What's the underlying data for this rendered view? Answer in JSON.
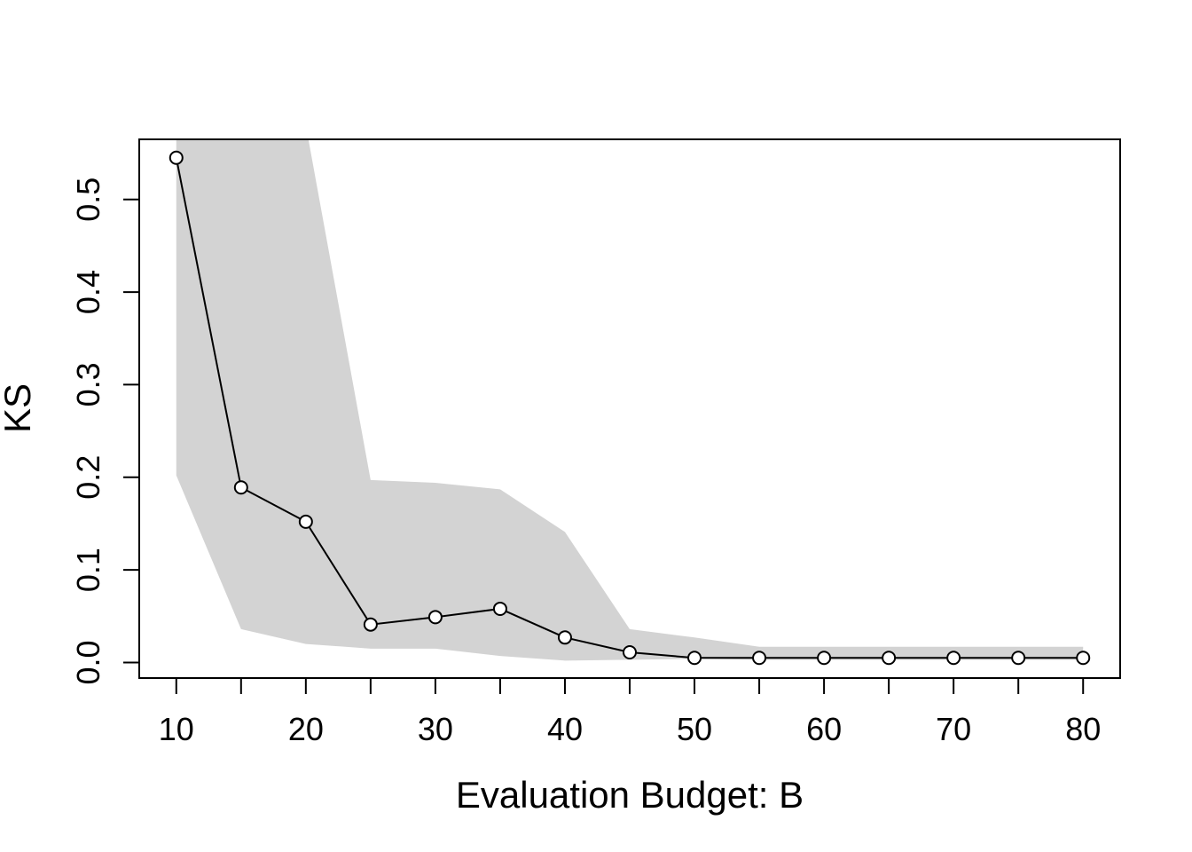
{
  "chart_data": {
    "type": "line",
    "title": "",
    "xlabel": "Evaluation Budget: B",
    "ylabel": "KS",
    "x": [
      10,
      15,
      20,
      25,
      30,
      35,
      40,
      45,
      50,
      55,
      60,
      65,
      70,
      75,
      80
    ],
    "series": [
      {
        "values": [
          0.545,
          0.189,
          0.152,
          0.041,
          0.049,
          0.058,
          0.027,
          0.011,
          0.005,
          0.005,
          0.005,
          0.005,
          0.005,
          0.005,
          0.005
        ],
        "marker": "open-circle",
        "color": "#000000"
      }
    ],
    "band": {
      "lower": [
        0.202,
        0.036,
        0.02,
        0.015,
        0.015,
        0.007,
        0.002,
        0.003,
        0.004,
        0.003,
        0.003,
        0.003,
        0.003,
        0.003,
        0.003
      ],
      "upper": [
        0.58,
        0.58,
        0.58,
        0.197,
        0.194,
        0.187,
        0.141,
        0.036,
        0.027,
        0.017,
        0.017,
        0.017,
        0.017,
        0.017,
        0.017
      ],
      "color": "#d3d3d3"
    },
    "xlim": [
      7.14,
      82.86
    ],
    "ylim": [
      -0.0168,
      0.5649
    ],
    "xticks": [
      10,
      20,
      30,
      40,
      50,
      60,
      70,
      80
    ],
    "xtick_minor": [
      15,
      25,
      35,
      45,
      55,
      65,
      75
    ],
    "yticks": [
      0.0,
      0.1,
      0.2,
      0.3,
      0.4,
      0.5
    ],
    "ytick_labels": [
      "0.0",
      "0.1",
      "0.2",
      "0.3",
      "0.4",
      "0.5"
    ],
    "grid": false,
    "legend": "none"
  }
}
